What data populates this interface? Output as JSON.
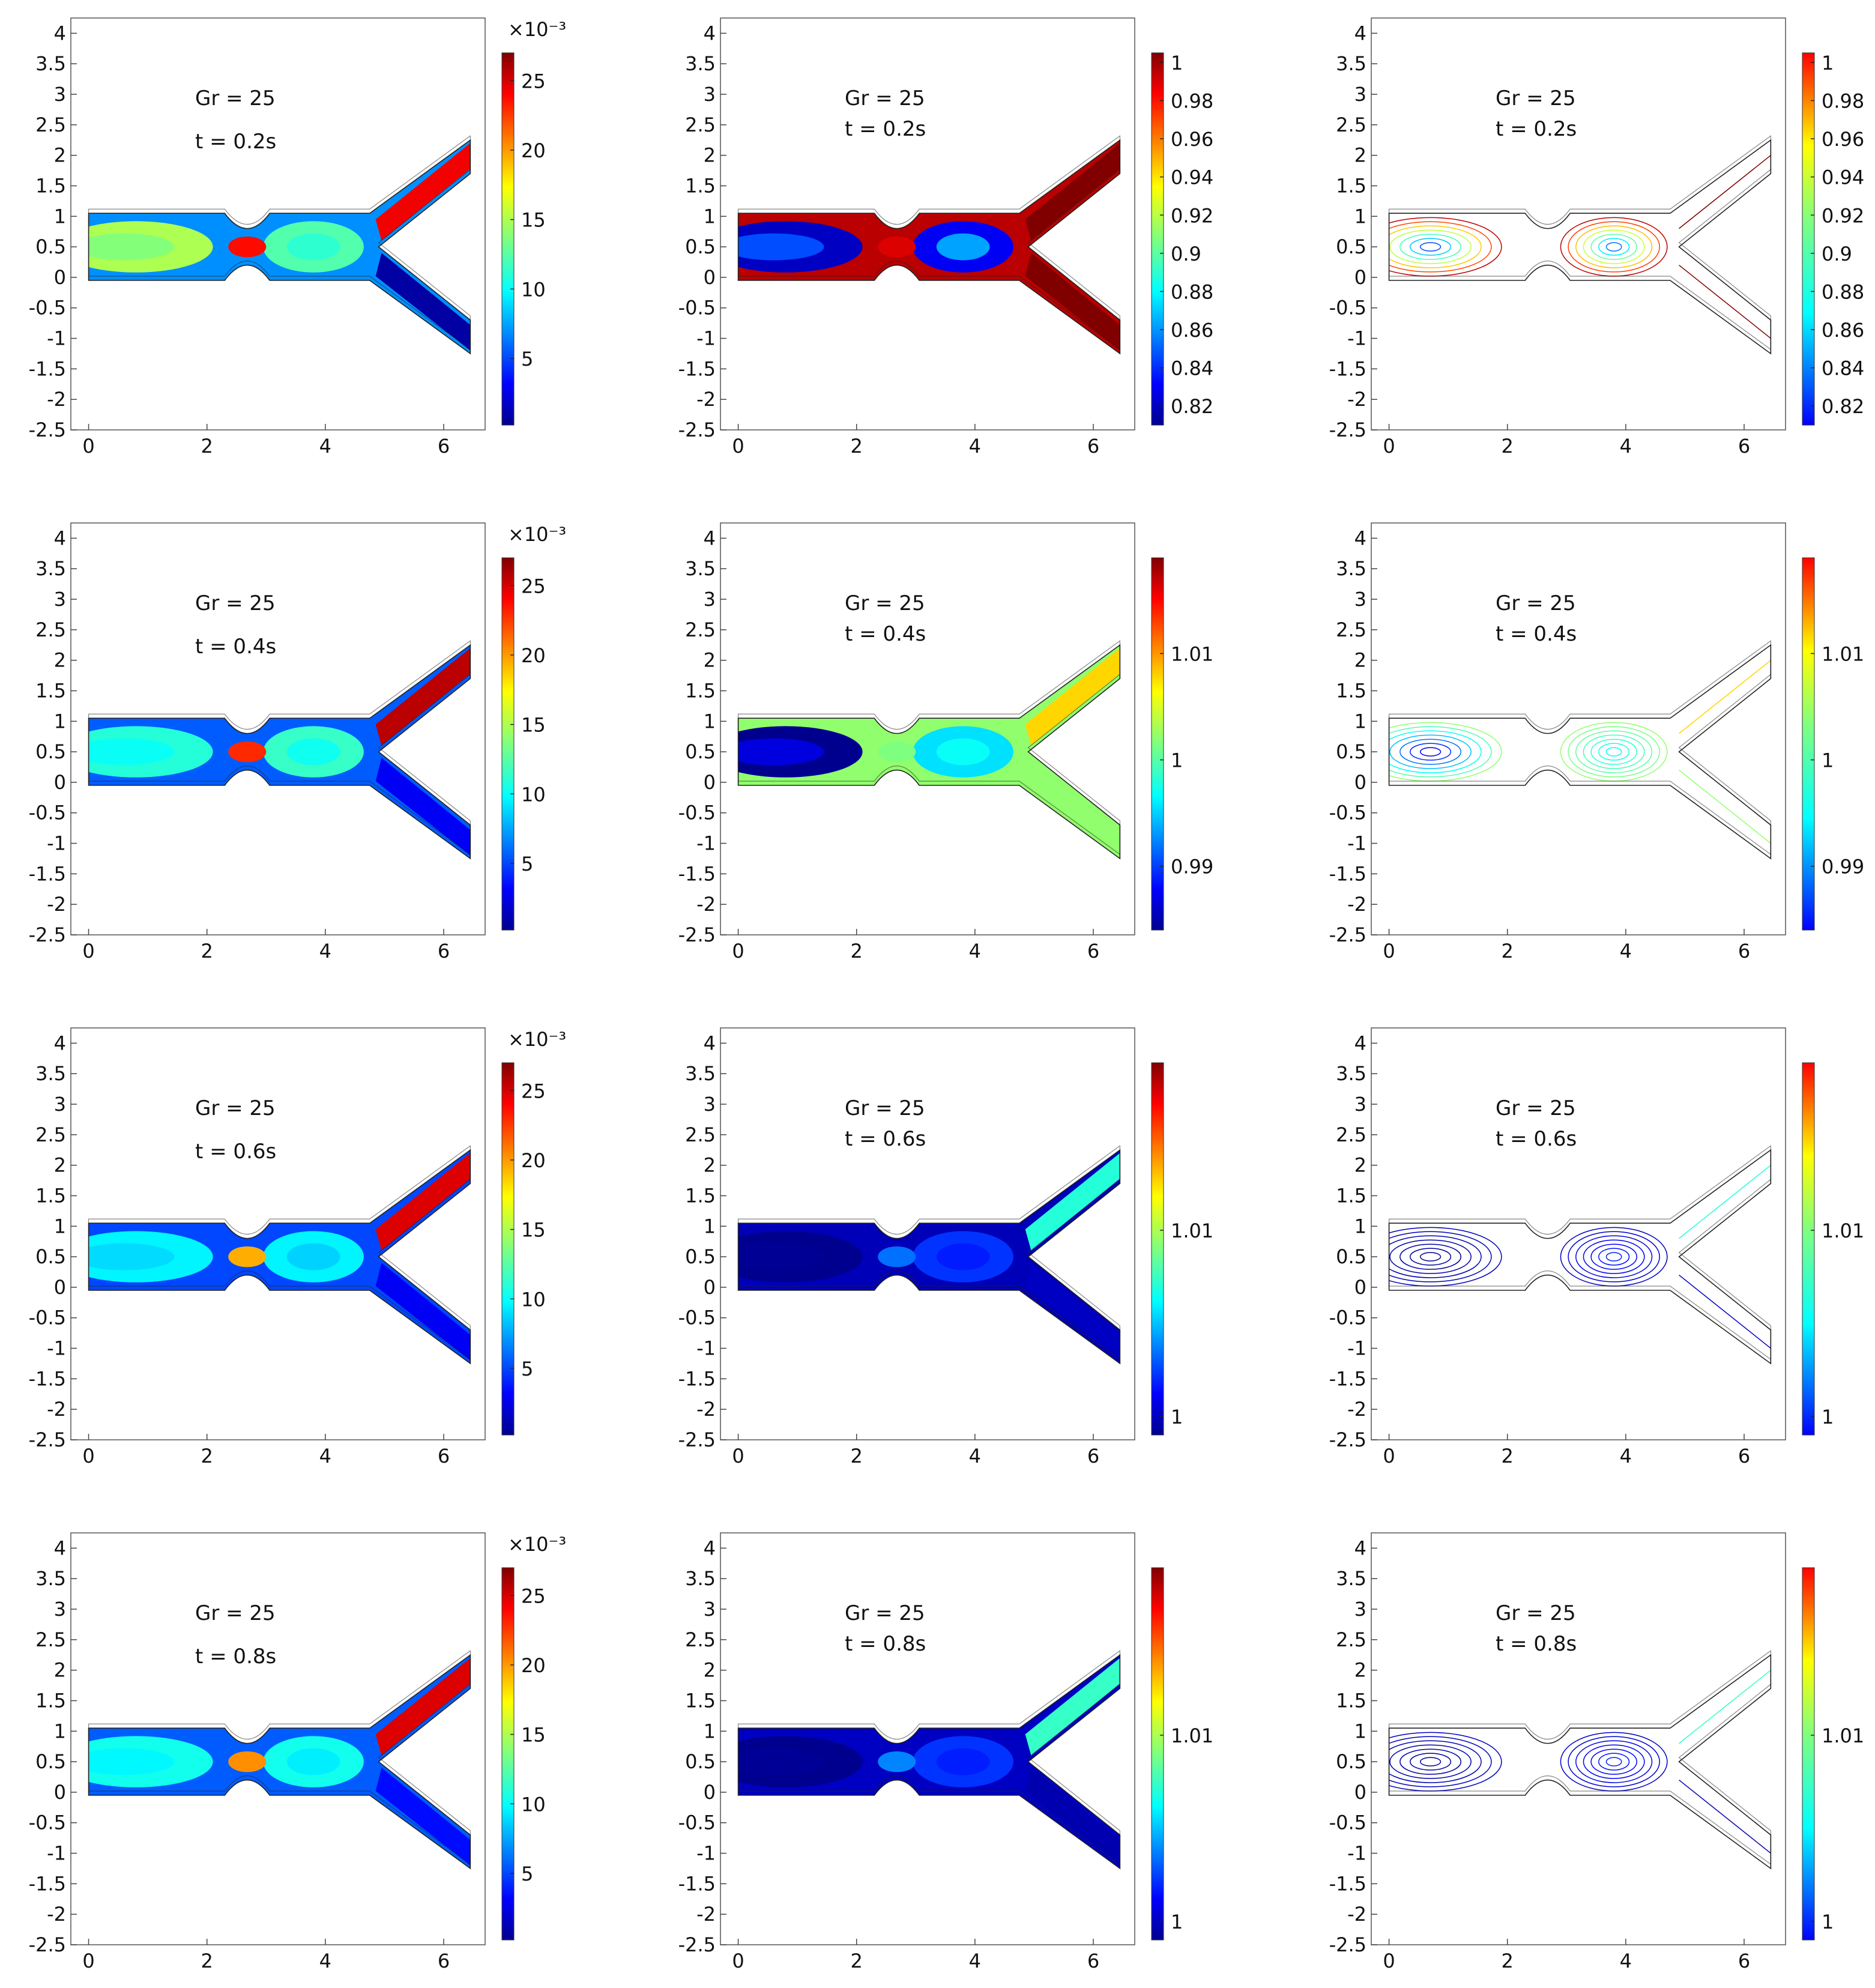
{
  "figure": {
    "rows": 4,
    "columns": 3,
    "gr_label": "Gr = 25",
    "time_labels": [
      "t = 0.2s",
      "t = 0.4s",
      "t = 0.6s",
      "t = 0.8s"
    ],
    "column_kinds": [
      "surface-velocity",
      "surface-field",
      "contour-field"
    ]
  },
  "chart_data": [
    {
      "type": "heatmap",
      "panel": "r1c1",
      "title": "Gr = 25",
      "subtitle": "t = 0.2s",
      "xlim": [
        -0.3,
        6.7
      ],
      "ylim": [
        -2.5,
        4.25
      ],
      "xticks": [
        0,
        2,
        4,
        6
      ],
      "yticks": [
        -2.5,
        -2,
        -1.5,
        -1,
        -0.5,
        0,
        0.5,
        1,
        1.5,
        2,
        2.5,
        3,
        3.5,
        4
      ],
      "style": "fill",
      "colorbar": {
        "exponent": "×10⁻³",
        "range": [
          0.2,
          27
        ],
        "ticks": [
          5,
          10,
          15,
          20,
          25
        ]
      },
      "field_levels": {
        "inlet": 0.55,
        "throat": 0.88,
        "chamber": 0.45,
        "branch_top": 0.9,
        "branch_bottom": 0.02,
        "base": 0.25
      }
    },
    {
      "type": "heatmap",
      "panel": "r1c2",
      "title": "Gr = 25",
      "subtitle": "t = 0.2s",
      "xlim": [
        -0.3,
        6.7
      ],
      "ylim": [
        -2.5,
        4.25
      ],
      "xticks": [
        0,
        2,
        4,
        6
      ],
      "yticks": [
        -2.5,
        -2,
        -1.5,
        -1,
        -0.5,
        0,
        0.5,
        1,
        1.5,
        2,
        2.5,
        3,
        3.5,
        4
      ],
      "style": "fill",
      "colorbar": {
        "exponent": "",
        "range": [
          0.81,
          1.005
        ],
        "ticks": [
          0.82,
          0.84,
          0.86,
          0.88,
          0.9,
          0.92,
          0.94,
          0.96,
          0.98,
          1
        ]
      },
      "field_levels": {
        "inlet": 0.05,
        "throat": 0.92,
        "chamber": 0.1,
        "branch_top": 1.0,
        "branch_bottom": 1.0,
        "base": 0.95
      }
    },
    {
      "type": "heatmap",
      "panel": "r1c3",
      "title": "Gr = 25",
      "subtitle": "t = 0.2s",
      "xlim": [
        -0.3,
        6.7
      ],
      "ylim": [
        -2.5,
        4.25
      ],
      "xticks": [
        0,
        2,
        4,
        6
      ],
      "yticks": [
        -2.5,
        -2,
        -1.5,
        -1,
        -0.5,
        0,
        0.5,
        1,
        1.5,
        2,
        2.5,
        3,
        3.5,
        4
      ],
      "style": "contour",
      "colorbar": {
        "exponent": "",
        "range": [
          0.81,
          1.005
        ],
        "ticks": [
          0.82,
          0.84,
          0.86,
          0.88,
          0.9,
          0.92,
          0.94,
          0.96,
          0.98,
          1
        ]
      },
      "field_levels": {
        "inlet": 0.05,
        "throat": 0.92,
        "chamber": 0.1,
        "branch_top": 1.0,
        "branch_bottom": 1.0,
        "base": 0.95
      }
    },
    {
      "type": "heatmap",
      "panel": "r2c1",
      "title": "Gr = 25",
      "subtitle": "t = 0.4s",
      "xlim": [
        -0.3,
        6.7
      ],
      "ylim": [
        -2.5,
        4.25
      ],
      "xticks": [
        0,
        2,
        4,
        6
      ],
      "yticks": [
        -2.5,
        -2,
        -1.5,
        -1,
        -0.5,
        0,
        0.5,
        1,
        1.5,
        2,
        2.5,
        3,
        3.5,
        4
      ],
      "style": "fill",
      "colorbar": {
        "exponent": "×10⁻³",
        "range": [
          0.2,
          27
        ],
        "ticks": [
          5,
          10,
          15,
          20,
          25
        ]
      },
      "field_levels": {
        "inlet": 0.4,
        "throat": 0.85,
        "chamber": 0.42,
        "branch_top": 0.95,
        "branch_bottom": 0.1,
        "base": 0.2
      }
    },
    {
      "type": "heatmap",
      "panel": "r2c2",
      "title": "Gr = 25",
      "subtitle": "t = 0.4s",
      "xlim": [
        -0.3,
        6.7
      ],
      "ylim": [
        -2.5,
        4.25
      ],
      "xticks": [
        0,
        2,
        4,
        6
      ],
      "yticks": [
        -2.5,
        -2,
        -1.5,
        -1,
        -0.5,
        0,
        0.5,
        1,
        1.5,
        2,
        2.5,
        3,
        3.5,
        4
      ],
      "style": "fill",
      "colorbar": {
        "exponent": "",
        "range": [
          0.984,
          1.019
        ],
        "ticks": [
          0.99,
          1,
          1.01
        ]
      },
      "field_levels": {
        "inlet": 0.0,
        "throat": 0.5,
        "chamber": 0.33,
        "branch_top": 0.68,
        "branch_bottom": 0.52,
        "base": 0.52
      }
    },
    {
      "type": "heatmap",
      "panel": "r2c3",
      "title": "Gr = 25",
      "subtitle": "t = 0.4s",
      "xlim": [
        -0.3,
        6.7
      ],
      "ylim": [
        -2.5,
        4.25
      ],
      "xticks": [
        0,
        2,
        4,
        6
      ],
      "yticks": [
        -2.5,
        -2,
        -1.5,
        -1,
        -0.5,
        0,
        0.5,
        1,
        1.5,
        2,
        2.5,
        3,
        3.5,
        4
      ],
      "style": "contour",
      "colorbar": {
        "exponent": "",
        "range": [
          0.984,
          1.019
        ],
        "ticks": [
          0.99,
          1,
          1.01
        ]
      },
      "field_levels": {
        "inlet": 0.0,
        "throat": 0.5,
        "chamber": 0.33,
        "branch_top": 0.68,
        "branch_bottom": 0.52,
        "base": 0.52
      }
    },
    {
      "type": "heatmap",
      "panel": "r3c1",
      "title": "Gr = 25",
      "subtitle": "t = 0.6s",
      "xlim": [
        -0.3,
        6.7
      ],
      "ylim": [
        -2.5,
        4.25
      ],
      "xticks": [
        0,
        2,
        4,
        6
      ],
      "yticks": [
        -2.5,
        -2,
        -1.5,
        -1,
        -0.5,
        0,
        0.5,
        1,
        1.5,
        2,
        2.5,
        3,
        3.5,
        4
      ],
      "style": "fill",
      "colorbar": {
        "exponent": "×10⁻³",
        "range": [
          0.2,
          27
        ],
        "ticks": [
          5,
          10,
          15,
          20,
          25
        ]
      },
      "field_levels": {
        "inlet": 0.35,
        "throat": 0.72,
        "chamber": 0.35,
        "branch_top": 0.92,
        "branch_bottom": 0.1,
        "base": 0.18
      }
    },
    {
      "type": "heatmap",
      "panel": "r3c2",
      "title": "Gr = 25",
      "subtitle": "t = 0.6s",
      "xlim": [
        -0.3,
        6.7
      ],
      "ylim": [
        -2.5,
        4.25
      ],
      "xticks": [
        0,
        2,
        4,
        6
      ],
      "yticks": [
        -2.5,
        -2,
        -1.5,
        -1,
        -0.5,
        0,
        0.5,
        1,
        1.5,
        2,
        2.5,
        3,
        3.5,
        4
      ],
      "style": "fill",
      "colorbar": {
        "exponent": "",
        "range": [
          0.999,
          1.019
        ],
        "ticks": [
          1,
          1.01
        ]
      },
      "field_levels": {
        "inlet": 0.0,
        "throat": 0.22,
        "chamber": 0.16,
        "branch_top": 0.4,
        "branch_bottom": 0.05,
        "base": 0.04
      }
    },
    {
      "type": "heatmap",
      "panel": "r3c3",
      "title": "Gr = 25",
      "subtitle": "t = 0.6s",
      "xlim": [
        -0.3,
        6.7
      ],
      "ylim": [
        -2.5,
        4.25
      ],
      "xticks": [
        0,
        2,
        4,
        6
      ],
      "yticks": [
        -2.5,
        -2,
        -1.5,
        -1,
        -0.5,
        0,
        0.5,
        1,
        1.5,
        2,
        2.5,
        3,
        3.5,
        4
      ],
      "style": "contour",
      "colorbar": {
        "exponent": "",
        "range": [
          0.999,
          1.019
        ],
        "ticks": [
          1,
          1.01
        ]
      },
      "field_levels": {
        "inlet": 0.0,
        "throat": 0.22,
        "chamber": 0.16,
        "branch_top": 0.4,
        "branch_bottom": 0.05,
        "base": 0.04
      }
    },
    {
      "type": "heatmap",
      "panel": "r4c1",
      "title": "Gr = 25",
      "subtitle": "t = 0.8s",
      "xlim": [
        -0.3,
        6.7
      ],
      "ylim": [
        -2.5,
        4.25
      ],
      "xticks": [
        0,
        2,
        4,
        6
      ],
      "yticks": [
        -2.5,
        -2,
        -1.5,
        -1,
        -0.5,
        0,
        0.5,
        1,
        1.5,
        2,
        2.5,
        3,
        3.5,
        4
      ],
      "style": "fill",
      "colorbar": {
        "exponent": "×10⁻³",
        "range": [
          0.2,
          27
        ],
        "ticks": [
          5,
          10,
          15,
          20,
          25
        ]
      },
      "field_levels": {
        "inlet": 0.38,
        "throat": 0.75,
        "chamber": 0.38,
        "branch_top": 0.92,
        "branch_bottom": 0.12,
        "base": 0.2
      }
    },
    {
      "type": "heatmap",
      "panel": "r4c2",
      "title": "Gr = 25",
      "subtitle": "t = 0.8s",
      "xlim": [
        -0.3,
        6.7
      ],
      "ylim": [
        -2.5,
        4.25
      ],
      "xticks": [
        0,
        2,
        4,
        6
      ],
      "yticks": [
        -2.5,
        -2,
        -1.5,
        -1,
        -0.5,
        0,
        0.5,
        1,
        1.5,
        2,
        2.5,
        3,
        3.5,
        4
      ],
      "style": "fill",
      "colorbar": {
        "exponent": "",
        "range": [
          0.999,
          1.019
        ],
        "ticks": [
          1,
          1.01
        ]
      },
      "field_levels": {
        "inlet": 0.0,
        "throat": 0.24,
        "chamber": 0.16,
        "branch_top": 0.42,
        "branch_bottom": 0.03,
        "base": 0.05
      }
    },
    {
      "type": "heatmap",
      "panel": "r4c3",
      "title": "Gr = 25",
      "subtitle": "t = 0.8s",
      "xlim": [
        -0.3,
        6.7
      ],
      "ylim": [
        -2.5,
        4.25
      ],
      "xticks": [
        0,
        2,
        4,
        6
      ],
      "yticks": [
        -2.5,
        -2,
        -1.5,
        -1,
        -0.5,
        0,
        0.5,
        1,
        1.5,
        2,
        2.5,
        3,
        3.5,
        4
      ],
      "style": "contour",
      "colorbar": {
        "exponent": "",
        "range": [
          0.999,
          1.019
        ],
        "ticks": [
          1,
          1.01
        ]
      },
      "field_levels": {
        "inlet": 0.0,
        "throat": 0.24,
        "chamber": 0.16,
        "branch_top": 0.42,
        "branch_bottom": 0.03,
        "base": 0.05
      }
    }
  ]
}
